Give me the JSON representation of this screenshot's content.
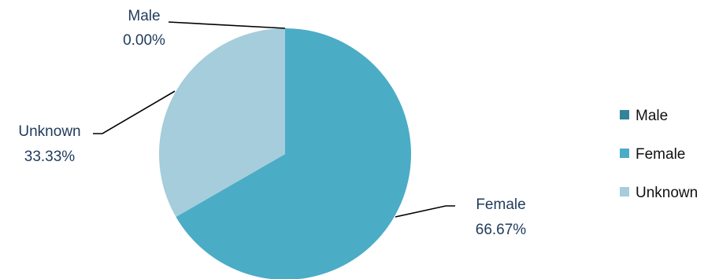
{
  "chart_data": {
    "type": "pie",
    "title": "",
    "legend_position": "right",
    "slices": [
      {
        "label": "Male",
        "value": 0.0,
        "percent_label": "0.00%",
        "color": "#31849B"
      },
      {
        "label": "Female",
        "value": 66.67,
        "percent_label": "66.67%",
        "color": "#4BACC6"
      },
      {
        "label": "Unknown",
        "value": 33.33,
        "percent_label": "33.33%",
        "color": "#A5CDDB"
      }
    ]
  }
}
